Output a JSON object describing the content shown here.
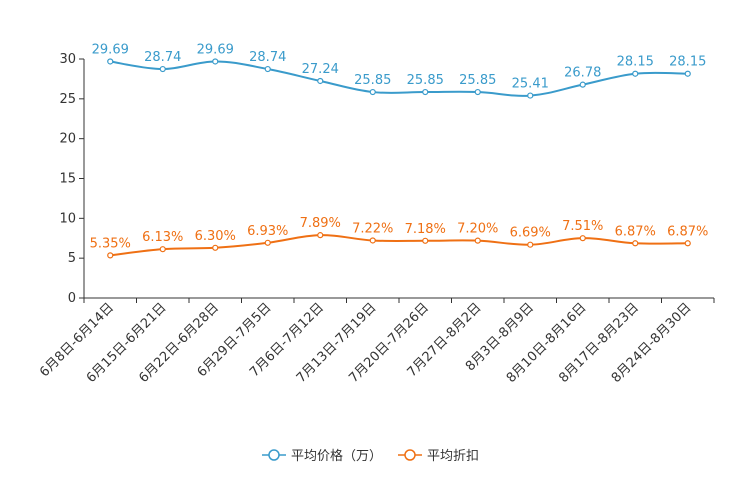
{
  "chart_data": {
    "type": "line",
    "categories": [
      "6月8日-6月14日",
      "6月15日-6月21日",
      "6月22日-6月28日",
      "6月29日-7月5日",
      "7月6日-7月12日",
      "7月13日-7月19日",
      "7月20日-7月26日",
      "7月27日-8月2日",
      "8月3日-8月9日",
      "8月10日-8月16日",
      "8月17日-8月23日",
      "8月24日-8月30日"
    ],
    "ylim": [
      0,
      30
    ],
    "yticks": [
      0,
      5,
      10,
      15,
      20,
      25,
      30
    ],
    "series": [
      {
        "name": "平均价格（万）",
        "color": "#3a9bcb",
        "values": [
          29.69,
          28.74,
          29.69,
          28.74,
          27.24,
          25.85,
          25.85,
          25.85,
          25.41,
          26.78,
          28.15,
          28.15
        ],
        "labels": [
          "29.69",
          "28.74",
          "29.69",
          "28.74",
          "27.24",
          "25.85",
          "25.85",
          "25.85",
          "25.41",
          "26.78",
          "28.15",
          "28.15"
        ]
      },
      {
        "name": "平均折扣",
        "color": "#ef7014",
        "values": [
          5.35,
          6.13,
          6.3,
          6.93,
          7.89,
          7.22,
          7.18,
          7.2,
          6.69,
          7.51,
          6.87,
          6.87
        ],
        "labels": [
          "5.35%",
          "6.13%",
          "6.30%",
          "6.93%",
          "7.89%",
          "7.22%",
          "7.18%",
          "7.20%",
          "6.69%",
          "7.51%",
          "6.87%",
          "6.87%"
        ]
      }
    ]
  }
}
